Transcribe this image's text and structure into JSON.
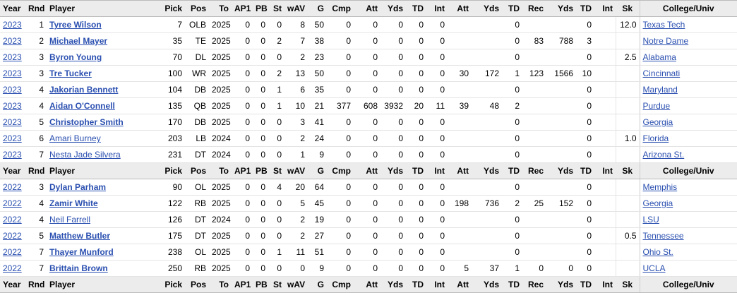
{
  "table": {
    "header": [
      "Year",
      "Rnd",
      "Player",
      "Pick",
      "Pos",
      "To",
      "AP1",
      "PB",
      "St",
      "wAV",
      "G",
      "Cmp",
      "Att",
      "Yds",
      "TD",
      "Int",
      "Att",
      "Yds",
      "TD",
      "Rec",
      "Yds",
      "TD",
      "Int",
      "Sk",
      "College/Univ"
    ],
    "groups": [
      {
        "rows": [
          [
            "2023",
            "1",
            "Tyree Wilson",
            "7",
            "OLB",
            "2025",
            "0",
            "0",
            "0",
            "8",
            "50",
            "0",
            "0",
            "0",
            "0",
            "0",
            null,
            null,
            "0",
            null,
            null,
            "0",
            null,
            "12.0",
            "Texas Tech"
          ],
          [
            "2023",
            "2",
            "Michael Mayer",
            "35",
            "TE",
            "2025",
            "0",
            "0",
            "2",
            "7",
            "38",
            "0",
            "0",
            "0",
            "0",
            "0",
            null,
            null,
            "0",
            "83",
            "788",
            "3",
            null,
            null,
            "Notre Dame"
          ],
          [
            "2023",
            "3",
            "Byron Young",
            "70",
            "DL",
            "2025",
            "0",
            "0",
            "0",
            "2",
            "23",
            "0",
            "0",
            "0",
            "0",
            "0",
            null,
            null,
            "0",
            null,
            null,
            "0",
            null,
            "2.5",
            "Alabama"
          ],
          [
            "2023",
            "3",
            "Tre Tucker",
            "100",
            "WR",
            "2025",
            "0",
            "0",
            "2",
            "13",
            "50",
            "0",
            "0",
            "0",
            "0",
            "0",
            "30",
            "172",
            "1",
            "123",
            "1566",
            "10",
            null,
            null,
            "Cincinnati"
          ],
          [
            "2023",
            "4",
            "Jakorian Bennett",
            "104",
            "DB",
            "2025",
            "0",
            "0",
            "1",
            "6",
            "35",
            "0",
            "0",
            "0",
            "0",
            "0",
            null,
            null,
            "0",
            null,
            null,
            "0",
            null,
            null,
            "Maryland"
          ],
          [
            "2023",
            "4",
            "Aidan O'Connell",
            "135",
            "QB",
            "2025",
            "0",
            "0",
            "1",
            "10",
            "21",
            "377",
            "608",
            "3932",
            "20",
            "11",
            "39",
            "48",
            "2",
            null,
            null,
            "0",
            null,
            null,
            "Purdue"
          ],
          [
            "2023",
            "5",
            "Christopher Smith",
            "170",
            "DB",
            "2025",
            "0",
            "0",
            "0",
            "3",
            "41",
            "0",
            "0",
            "0",
            "0",
            "0",
            null,
            null,
            "0",
            null,
            null,
            "0",
            null,
            null,
            "Georgia"
          ],
          [
            "2023",
            "6",
            "Amari Burney",
            "203",
            "LB",
            "2024",
            "0",
            "0",
            "0",
            "2",
            "24",
            "0",
            "0",
            "0",
            "0",
            "0",
            null,
            null,
            "0",
            null,
            null,
            "0",
            null,
            "1.0",
            "Florida"
          ],
          [
            "2023",
            "7",
            "Nesta Jade Silvera",
            "231",
            "DT",
            "2024",
            "0",
            "0",
            "0",
            "1",
            "9",
            "0",
            "0",
            "0",
            "0",
            "0",
            null,
            null,
            "0",
            null,
            null,
            "0",
            null,
            null,
            "Arizona St."
          ]
        ]
      },
      {
        "rows": [
          [
            "2022",
            "3",
            "Dylan Parham",
            "90",
            "OL",
            "2025",
            "0",
            "0",
            "4",
            "20",
            "64",
            "0",
            "0",
            "0",
            "0",
            "0",
            null,
            null,
            "0",
            null,
            null,
            "0",
            null,
            null,
            "Memphis"
          ],
          [
            "2022",
            "4",
            "Zamir White",
            "122",
            "RB",
            "2025",
            "0",
            "0",
            "0",
            "5",
            "45",
            "0",
            "0",
            "0",
            "0",
            "0",
            "198",
            "736",
            "2",
            "25",
            "152",
            "0",
            null,
            null,
            "Georgia"
          ],
          [
            "2022",
            "4",
            "Neil Farrell",
            "126",
            "DT",
            "2024",
            "0",
            "0",
            "0",
            "2",
            "19",
            "0",
            "0",
            "0",
            "0",
            "0",
            null,
            null,
            "0",
            null,
            null,
            "0",
            null,
            null,
            "LSU"
          ],
          [
            "2022",
            "5",
            "Matthew Butler",
            "175",
            "DT",
            "2025",
            "0",
            "0",
            "0",
            "2",
            "27",
            "0",
            "0",
            "0",
            "0",
            "0",
            null,
            null,
            "0",
            null,
            null,
            "0",
            null,
            "0.5",
            "Tennessee"
          ],
          [
            "2022",
            "7",
            "Thayer Munford",
            "238",
            "OL",
            "2025",
            "0",
            "0",
            "1",
            "11",
            "51",
            "0",
            "0",
            "0",
            "0",
            "0",
            null,
            null,
            "0",
            null,
            null,
            "0",
            null,
            null,
            "Ohio St."
          ],
          [
            "2022",
            "7",
            "Brittain Brown",
            "250",
            "RB",
            "2025",
            "0",
            "0",
            "0",
            "0",
            "9",
            "0",
            "0",
            "0",
            "0",
            "0",
            "5",
            "37",
            "1",
            "0",
            "0",
            "0",
            null,
            null,
            "UCLA"
          ]
        ]
      }
    ]
  }
}
